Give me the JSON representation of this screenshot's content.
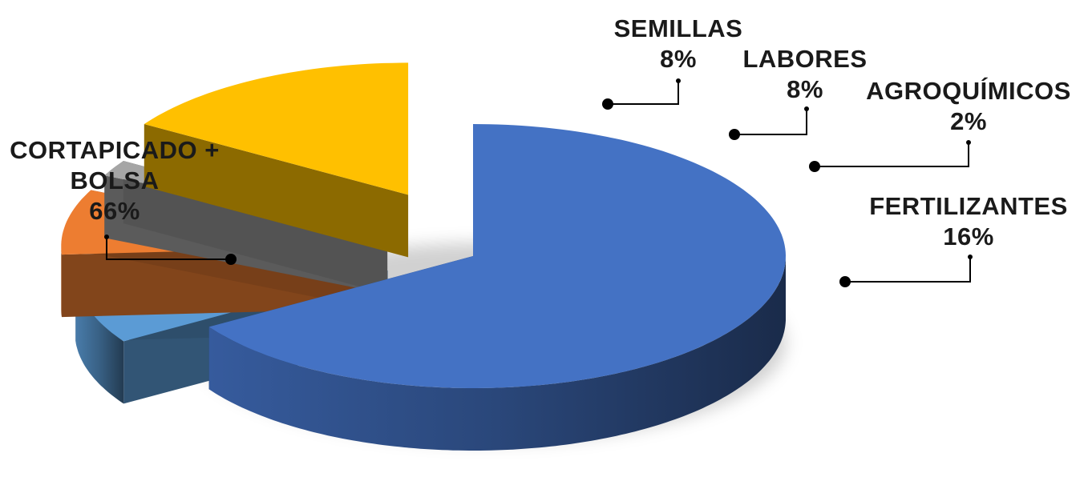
{
  "chart_data": {
    "type": "pie",
    "style": "3d-exploded",
    "slices": [
      {
        "name": "CORTAPICADO + BOLSA",
        "name_lines": [
          "CORTAPICADO +",
          "BOLSA"
        ],
        "value": 66,
        "value_label": "66%",
        "color": "#4472c4"
      },
      {
        "name": "SEMILLAS",
        "name_lines": [
          "SEMILLAS"
        ],
        "value": 8,
        "value_label": "8%",
        "color": "#5b9bd5"
      },
      {
        "name": "LABORES",
        "name_lines": [
          "LABORES"
        ],
        "value": 8,
        "value_label": "8%",
        "color": "#ed7d31"
      },
      {
        "name": "AGROQUÍMICOS",
        "name_lines": [
          "AGROQUÍMICOS"
        ],
        "value": 2,
        "value_label": "2%",
        "color": "#a5a5a5"
      },
      {
        "name": "FERTILIZANTES",
        "name_lines": [
          "FERTILIZANTES"
        ],
        "value": 16,
        "value_label": "16%",
        "color": "#ffc000"
      }
    ]
  }
}
